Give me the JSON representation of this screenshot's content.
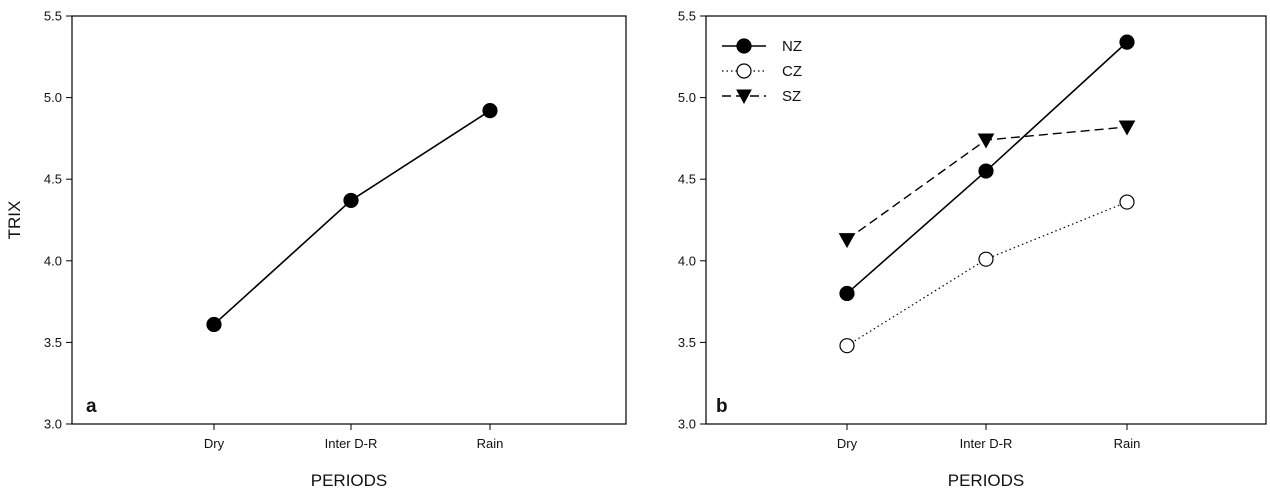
{
  "chart_data": [
    {
      "panel_label": "a",
      "type": "line",
      "xlabel": "PERIODS",
      "ylabel": "TRIX",
      "categories": [
        "Dry",
        "Inter D-R",
        "Rain"
      ],
      "ylim": [
        3.0,
        5.5
      ],
      "yticks": [
        "3.0",
        "3.5",
        "4.0",
        "4.5",
        "5.0",
        "5.5"
      ],
      "grid": false,
      "legend": null,
      "series": [
        {
          "values": [
            3.61,
            4.37,
            4.92
          ],
          "marker": "filled-circle",
          "line": "solid",
          "color": "#000000"
        }
      ]
    },
    {
      "panel_label": "b",
      "type": "line",
      "xlabel": "PERIODS",
      "ylabel": "",
      "categories": [
        "Dry",
        "Inter D-R",
        "Rain"
      ],
      "ylim": [
        3.0,
        5.5
      ],
      "yticks": [
        "3.0",
        "3.5",
        "4.0",
        "4.5",
        "5.0",
        "5.5"
      ],
      "grid": false,
      "legend": "top-left",
      "series": [
        {
          "name": "NZ",
          "values": [
            3.8,
            4.55,
            5.34
          ],
          "marker": "filled-circle",
          "line": "solid",
          "color": "#000000"
        },
        {
          "name": "CZ",
          "values": [
            3.48,
            4.01,
            4.36
          ],
          "marker": "open-circle",
          "line": "dotted",
          "color": "#000000"
        },
        {
          "name": "SZ",
          "values": [
            4.13,
            4.74,
            4.82
          ],
          "marker": "filled-triangle-down",
          "line": "dashed",
          "color": "#000000"
        }
      ]
    }
  ]
}
